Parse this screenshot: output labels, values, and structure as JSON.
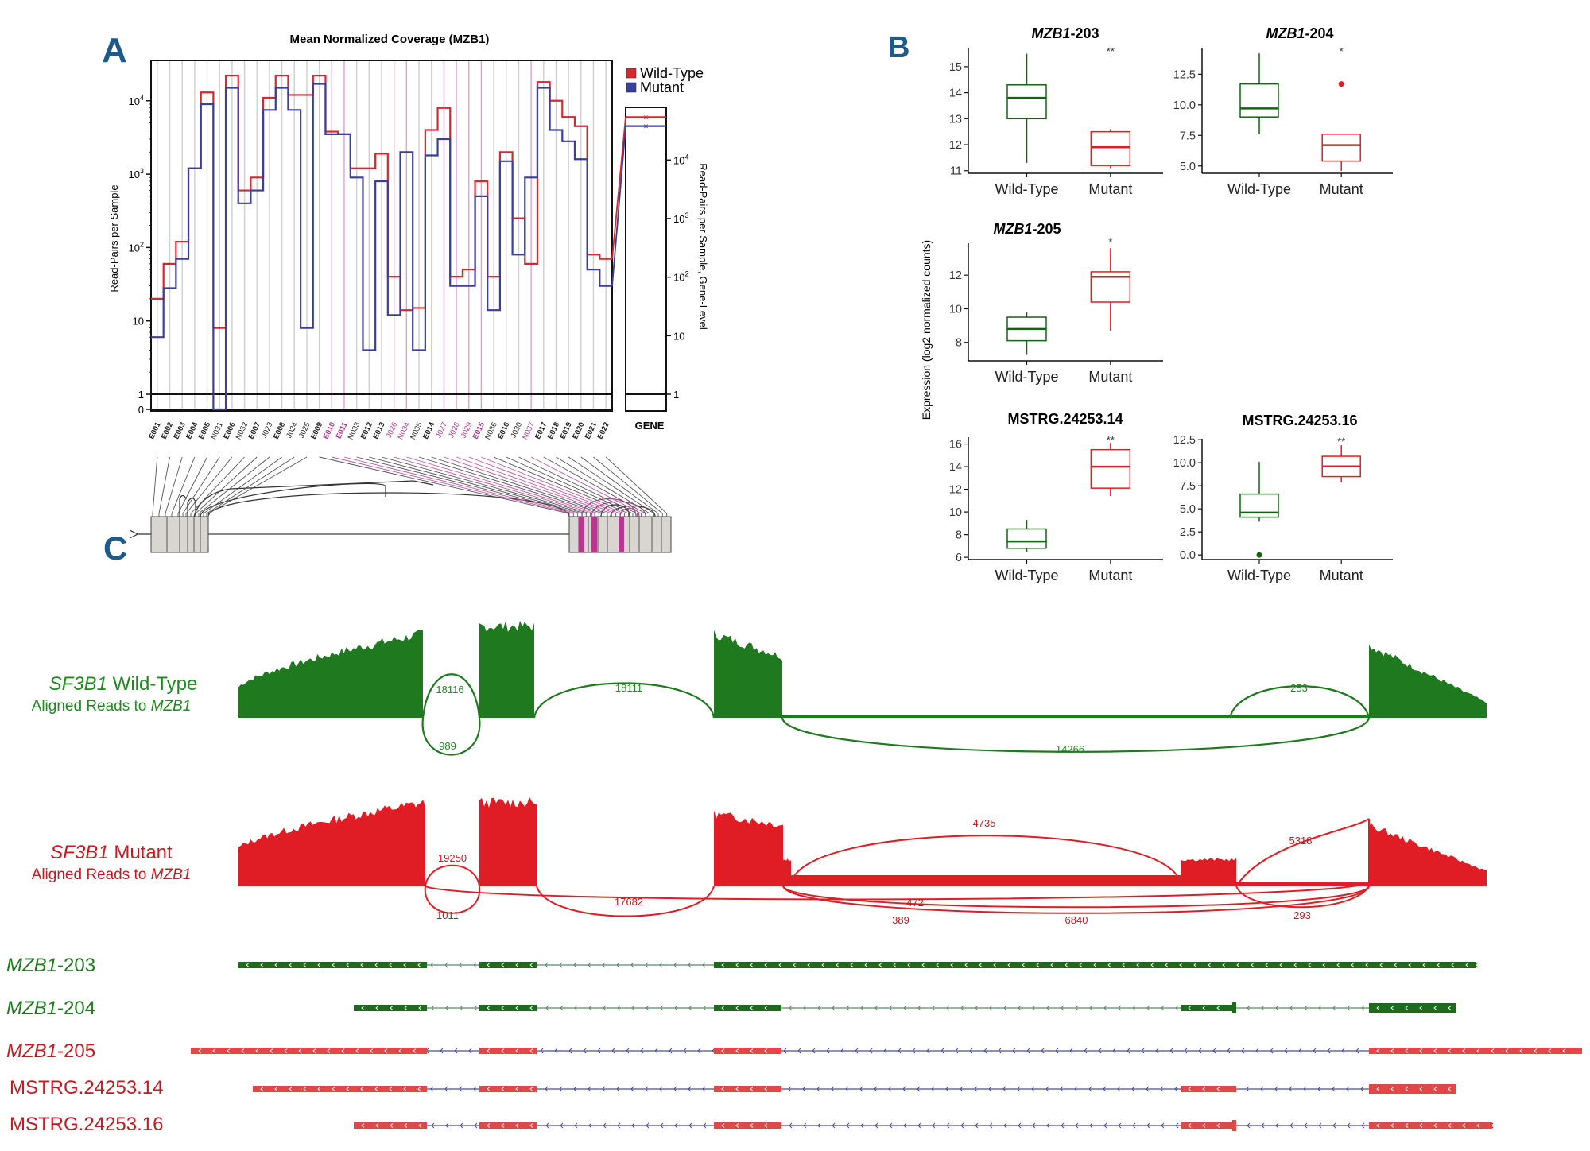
{
  "colors": {
    "wt": "#d7282f",
    "mut": "#3a3f9e",
    "green": "#1f7a1f",
    "darkgreen": "#146414",
    "red": "#e01d24",
    "pink": "#d83fa6",
    "panel": "#1e5a8a"
  },
  "panel_labels": {
    "a": "A",
    "b": "B",
    "c": "C"
  },
  "chart_data": [
    {
      "id": "A",
      "type": "line",
      "title": "Mean Normalized Coverage (MZB1)",
      "ylabel": "Read-Pairs per Sample",
      "ylabel_right": "Read-Pairs per Sample, Gene-Level",
      "yscale": "log",
      "yticks": [
        "0",
        "1",
        "10",
        "10^2",
        "10^3",
        "10^4"
      ],
      "yticks_right": [
        "1",
        "10",
        "10^2",
        "10^3",
        "10^4"
      ],
      "legend": [
        "Wild-Type",
        "Mutant"
      ],
      "gene_label": "GENE",
      "features": [
        "E001",
        "E002",
        "E003",
        "E004",
        "E005",
        "N031",
        "E006",
        "N032",
        "E007",
        "J023",
        "E008",
        "J024",
        "J025",
        "E009",
        "E010",
        "E011",
        "N033",
        "E012",
        "E013",
        "J026",
        "N034",
        "N035",
        "E014",
        "J027",
        "J028",
        "J029",
        "E015",
        "N036",
        "E016",
        "J030",
        "N037",
        "E017",
        "E018",
        "E019",
        "E020",
        "E021",
        "E022"
      ],
      "series": [
        {
          "name": "Wild-Type",
          "values": [
            20,
            60,
            120,
            1200,
            13000,
            8,
            22000,
            600,
            900,
            11000,
            22000,
            12000,
            null,
            22000,
            3800,
            3500,
            1200,
            null,
            1900,
            40,
            14,
            15,
            4000,
            8000,
            40,
            50,
            800,
            40,
            2000,
            250,
            60,
            18000,
            10000,
            6000,
            4500,
            80,
            70
          ]
        },
        {
          "name": "Mutant",
          "values": [
            6,
            28,
            70,
            1200,
            9000,
            0,
            15000,
            400,
            600,
            7500,
            15000,
            7500,
            8,
            17000,
            3500,
            3500,
            900,
            4,
            800,
            12,
            2000,
            4,
            1800,
            3000,
            30,
            30,
            500,
            14,
            1500,
            80,
            900,
            15000,
            4000,
            2800,
            1600,
            50,
            30
          ]
        }
      ],
      "gene_level": {
        "Wild-Type": 54000,
        "Mutant": 38000
      }
    },
    {
      "id": "B",
      "type": "box",
      "shared_ylabel": "Expression (log2 normalized counts)",
      "categories": [
        "Wild-Type",
        "Mutant"
      ],
      "panels": [
        {
          "title": "MZB1-203",
          "italic": true,
          "yticks": [
            "11",
            "12",
            "13",
            "14",
            "15"
          ],
          "ylim": [
            10.9,
            15.7
          ],
          "sig": "**",
          "boxes": [
            {
              "min": 11.3,
              "q1": 13.0,
              "med": 13.8,
              "q3": 14.3,
              "max": 15.5,
              "outliers": []
            },
            {
              "min": 11.1,
              "q1": 11.2,
              "med": 11.9,
              "q3": 12.5,
              "max": 12.6,
              "outliers": []
            }
          ]
        },
        {
          "title": "MZB1-204",
          "italic": true,
          "yticks": [
            "5.0",
            "7.5",
            "10.0",
            "12.5"
          ],
          "ylim": [
            4.4,
            14.6
          ],
          "sig": "*",
          "boxes": [
            {
              "min": 7.6,
              "q1": 9.0,
              "med": 9.7,
              "q3": 11.7,
              "max": 14.2,
              "outliers": []
            },
            {
              "min": 4.6,
              "q1": 5.4,
              "med": 6.7,
              "q3": 7.6,
              "max": 7.6,
              "outliers": [
                11.7
              ]
            }
          ]
        },
        {
          "title": "MZB1-205",
          "italic": true,
          "yticks": [
            "8",
            "10",
            "12"
          ],
          "ylim": [
            6.9,
            13.9
          ],
          "sig": "*",
          "boxes": [
            {
              "min": 7.3,
              "q1": 8.1,
              "med": 8.8,
              "q3": 9.5,
              "max": 9.8,
              "outliers": []
            },
            {
              "min": 8.7,
              "q1": 10.4,
              "med": 11.9,
              "q3": 12.2,
              "max": 13.6,
              "outliers": []
            }
          ]
        },
        {
          "title": "MSTRG.24253.14",
          "italic": false,
          "yticks": [
            "6",
            "8",
            "10",
            "12",
            "14",
            "16"
          ],
          "ylim": [
            5.8,
            16.6
          ],
          "sig": "**",
          "boxes": [
            {
              "min": 6.5,
              "q1": 6.8,
              "med": 7.4,
              "q3": 8.5,
              "max": 9.3,
              "outliers": []
            },
            {
              "min": 11.4,
              "q1": 12.1,
              "med": 14.0,
              "q3": 15.5,
              "max": 16.1,
              "outliers": []
            }
          ]
        },
        {
          "title": "MSTRG.24253.16",
          "italic": false,
          "yticks": [
            "0.0",
            "2.5",
            "5.0",
            "7.5",
            "10.0",
            "12.5"
          ],
          "ylim": [
            -0.5,
            12.6
          ],
          "sig": "**",
          "boxes": [
            {
              "min": 3.6,
              "q1": 4.1,
              "med": 4.6,
              "q3": 6.6,
              "max": 10.1,
              "outliers": [
                0.0
              ]
            },
            {
              "min": 7.9,
              "q1": 8.5,
              "med": 9.6,
              "q3": 10.7,
              "max": 11.9,
              "outliers": []
            }
          ]
        }
      ]
    }
  ],
  "panel_c": {
    "wt": {
      "label_italic": "SF3B1",
      "label_rest": " Wild-Type",
      "sub_prefix": "Aligned Reads to ",
      "sub_gene": "MZB1",
      "junctions": [
        "18116",
        "989",
        "18111",
        "253",
        "14266"
      ]
    },
    "mut": {
      "label_italic": "SF3B1",
      "label_rest": " Mutant",
      "sub_prefix": "Aligned Reads to ",
      "sub_gene": "MZB1",
      "junctions": [
        "19250",
        "1011",
        "17682",
        "4735",
        "5318",
        "472",
        "389",
        "6840",
        "293"
      ]
    },
    "transcripts": [
      {
        "italic": "MZB1",
        "rest": "-203"
      },
      {
        "italic": "MZB1",
        "rest": "-204"
      },
      {
        "italic": "MZB1",
        "rest": "-205"
      },
      {
        "italic": "",
        "rest": "MSTRG.24253.14"
      },
      {
        "italic": "",
        "rest": "MSTRG.24253.16"
      }
    ]
  }
}
